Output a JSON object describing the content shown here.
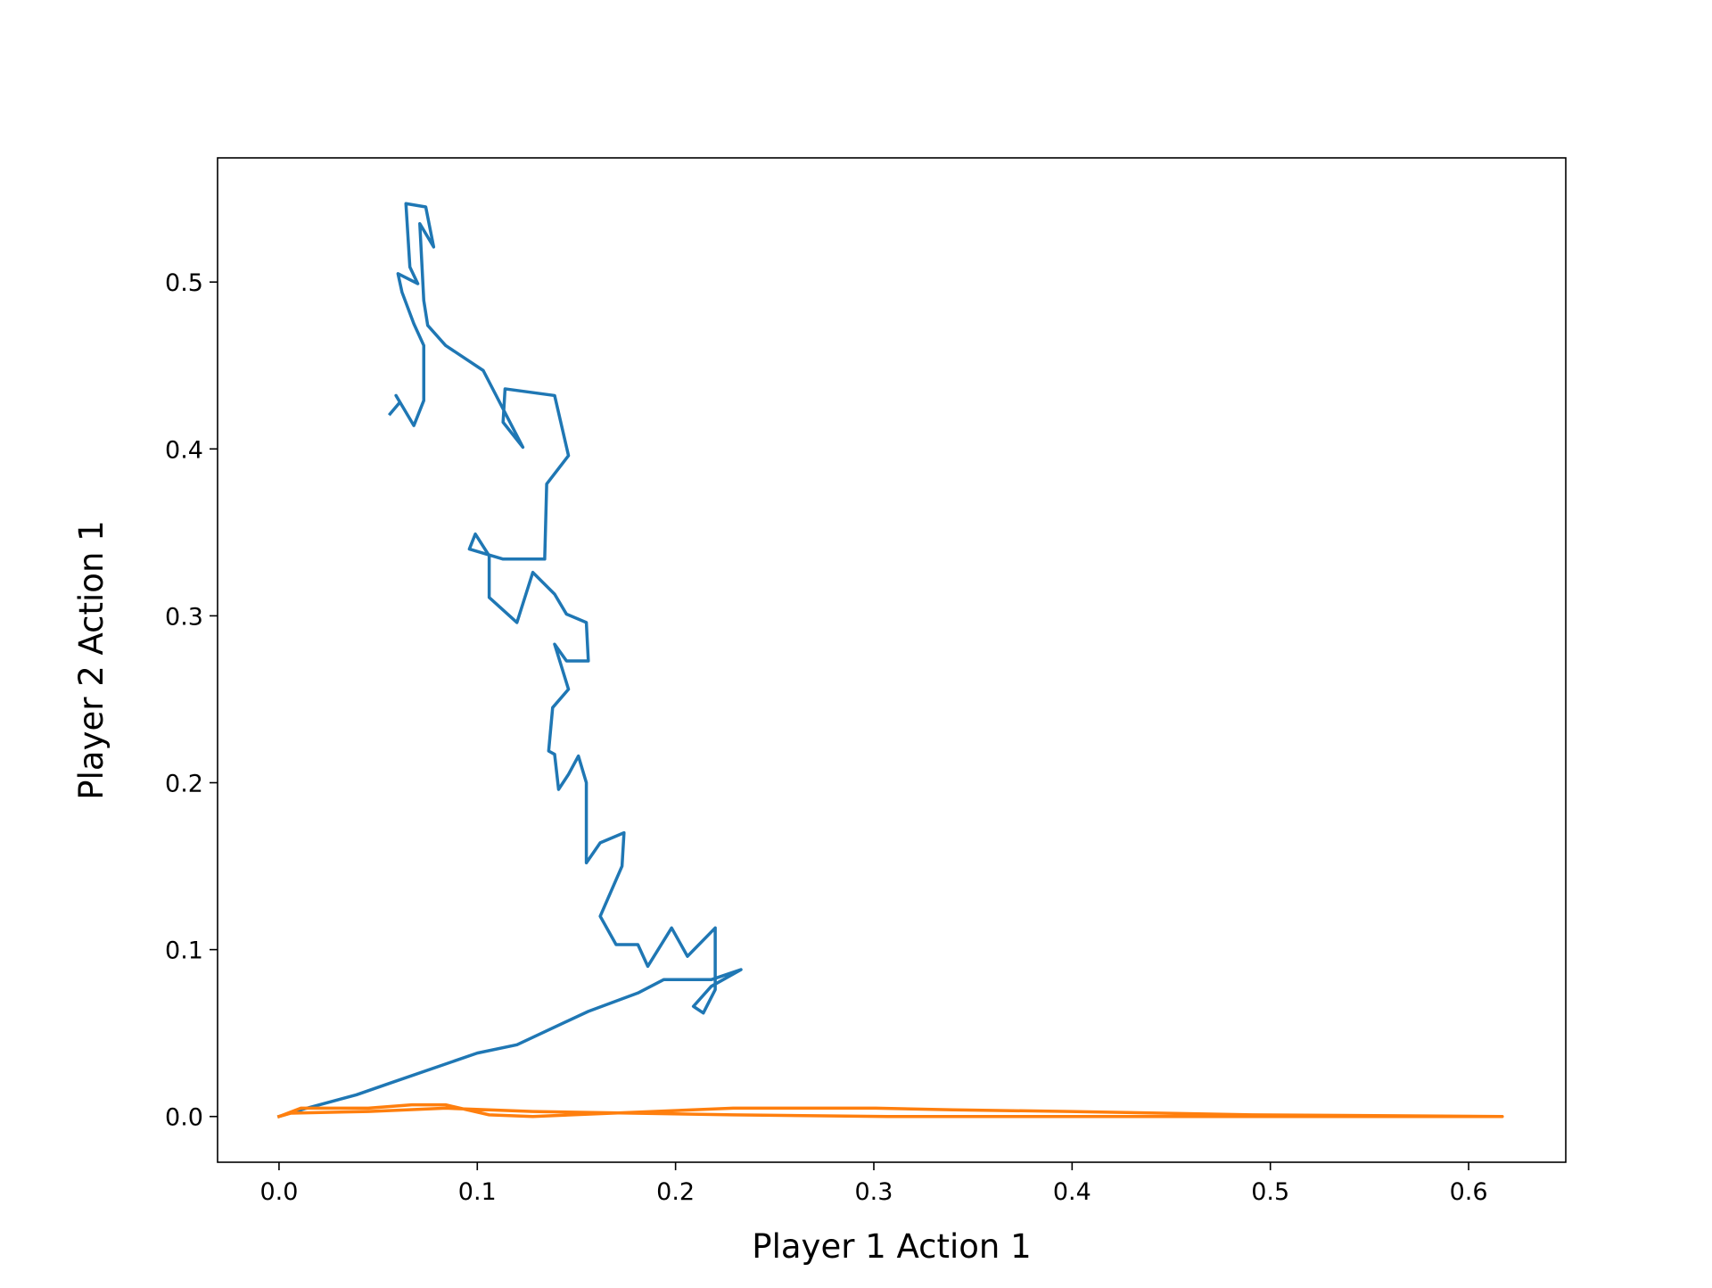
{
  "chart_data": {
    "type": "line",
    "x_label": "Player 1 Action 1",
    "y_label": "Player 2 Action 1",
    "xlim": [
      -0.031,
      0.649
    ],
    "ylim": [
      -0.0274,
      0.5744
    ],
    "xticks": [
      {
        "value": 0,
        "label": "0.0"
      },
      0.1,
      0.2,
      0.3,
      0.4,
      0.5,
      0.6
    ],
    "yticks": [
      {
        "value": 0,
        "label": "0.0"
      },
      0.1,
      0.2,
      0.3,
      0.4,
      0.5
    ],
    "grid": false,
    "series": [
      {
        "color": "#1f77b4",
        "x": [
          0,
          0.014,
          0.039,
          0.056,
          0.1,
          0.12,
          0.156,
          0.181,
          0.194,
          0.218,
          0.233,
          0.218,
          0.209,
          0.214,
          0.22,
          0.22,
          0.206,
          0.198,
          0.186,
          0.181,
          0.17,
          0.162,
          0.173,
          0.174,
          0.162,
          0.155,
          0.155,
          0.151,
          0.146,
          0.141,
          0.139,
          0.136,
          0.138,
          0.146,
          0.139,
          0.145,
          0.156,
          0.155,
          0.145,
          0.139,
          0.128,
          0.12,
          0.106,
          0.106,
          0.099,
          0.096,
          0.113,
          0.134,
          0.135,
          0.146,
          0.139,
          0.114,
          0.113,
          0.123,
          0.103,
          0.084,
          0.075,
          0.073,
          0.071,
          0.078,
          0.074,
          0.064,
          0.066,
          0.07,
          0.06,
          0.062,
          0.068,
          0.073,
          0.073,
          0.068,
          0.062,
          0.059,
          0.061,
          0.056
        ],
        "values": [
          0,
          0.005,
          0.013,
          0.02,
          0.038,
          0.043,
          0.063,
          0.074,
          0.082,
          0.082,
          0.088,
          0.078,
          0.066,
          0.062,
          0.076,
          0.113,
          0.096,
          0.113,
          0.09,
          0.103,
          0.103,
          0.12,
          0.15,
          0.17,
          0.164,
          0.152,
          0.2,
          0.216,
          0.205,
          0.196,
          0.217,
          0.219,
          0.245,
          0.256,
          0.283,
          0.273,
          0.273,
          0.296,
          0.301,
          0.313,
          0.326,
          0.296,
          0.311,
          0.336,
          0.349,
          0.34,
          0.334,
          0.334,
          0.379,
          0.396,
          0.432,
          0.436,
          0.416,
          0.401,
          0.447,
          0.462,
          0.474,
          0.489,
          0.535,
          0.521,
          0.545,
          0.547,
          0.509,
          0.499,
          0.505,
          0.494,
          0.475,
          0.462,
          0.429,
          0.414,
          0.426,
          0.432,
          0.428,
          0.421
        ]
      },
      {
        "color": "#ff7f0e",
        "x": [
          0,
          0.011,
          0.028,
          0.045,
          0.067,
          0.084,
          0.106,
          0.128,
          0.229,
          0.301,
          0.34,
          0.399,
          0.491,
          0.617,
          0.502,
          0.402,
          0.307,
          0.229,
          0.128,
          0.084,
          0.045,
          0.006,
          0
        ],
        "values": [
          0,
          0.005,
          0.005,
          0.005,
          0.007,
          0.007,
          0.001,
          0,
          0.005,
          0.005,
          0.004,
          0.003,
          0.001,
          0,
          0,
          0,
          0,
          0.001,
          0.003,
          0.005,
          0.003,
          0.002,
          0
        ]
      }
    ]
  }
}
